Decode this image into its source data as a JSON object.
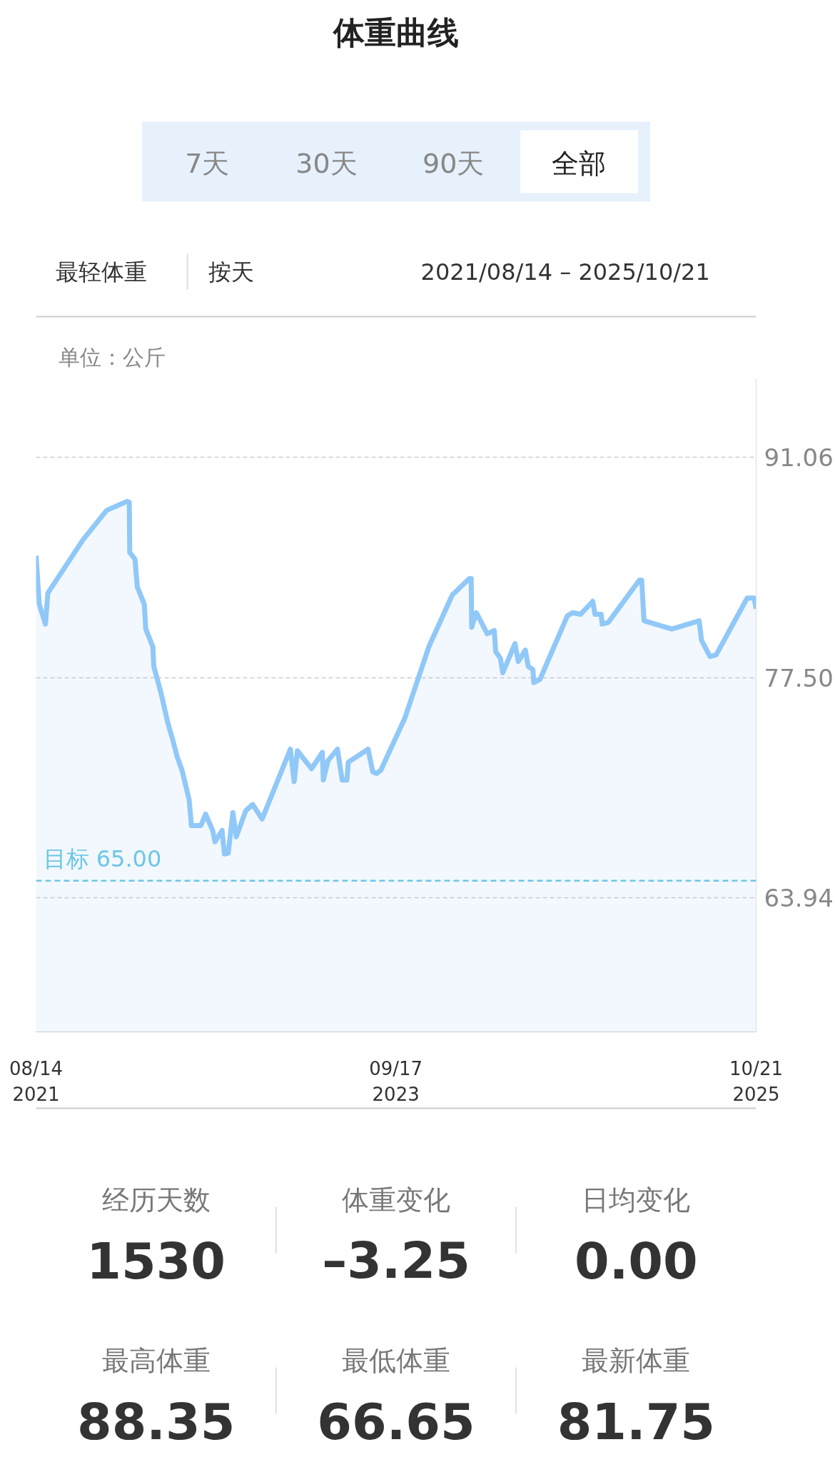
{
  "chart_data": {
    "type": "area",
    "title": "体重曲线",
    "x": [
      "2021-08-14",
      "2021-08-21",
      "2021-09-03",
      "2021-09-08",
      "2021-11-22",
      "2022-01-11",
      "2022-02-23",
      "2022-02-28",
      "2022-03-01",
      "2022-03-12",
      "2022-03-17",
      "2022-04-01",
      "2022-04-04",
      "2022-04-19",
      "2022-04-21",
      "2022-05-06",
      "2022-05-21",
      "2022-05-31",
      "2022-06-10",
      "2022-06-20",
      "2022-07-05",
      "2022-07-10",
      "2022-07-30",
      "2022-08-09",
      "2022-08-24",
      "2022-08-29",
      "2022-09-13",
      "2022-09-18",
      "2022-09-26",
      "2022-10-06",
      "2022-10-13",
      "2022-11-02",
      "2022-11-17",
      "2022-12-07",
      "2023-02-05",
      "2023-02-13",
      "2023-02-20",
      "2023-03-22",
      "2023-04-14",
      "2023-04-16",
      "2023-04-26",
      "2023-05-16",
      "2023-05-26",
      "2023-06-05",
      "2023-06-08",
      "2023-07-20",
      "2023-07-30",
      "2023-08-07",
      "2023-08-16",
      "2023-10-06",
      "2023-11-26",
      "2024-01-15",
      "2024-02-20",
      "2024-02-24",
      "2024-02-25",
      "2024-03-06",
      "2024-03-29",
      "2024-04-13",
      "2024-04-16",
      "2024-04-26",
      "2024-05-01",
      "2024-05-27",
      "2024-06-03",
      "2024-06-18",
      "2024-06-24",
      "2024-07-04",
      "2024-07-06",
      "2024-07-19",
      "2024-09-15",
      "2024-09-26",
      "2024-10-13",
      "2024-11-08",
      "2024-11-13",
      "2024-11-26",
      "2024-11-28",
      "2024-12-11",
      "2025-02-15",
      "2025-02-20",
      "2025-02-25",
      "2025-04-25",
      "2025-06-22",
      "2025-06-27",
      "2025-07-15",
      "2025-07-28",
      "2025-10-02",
      "2025-10-17",
      "2025-10-21"
    ],
    "series": [
      {
        "color": "#90c8f8",
        "values": [
          85.0,
          82.0,
          80.8,
          82.7,
          86.0,
          87.8,
          88.35,
          88.3,
          85.2,
          84.8,
          83.1,
          82.0,
          80.5,
          79.4,
          78.2,
          76.6,
          74.7,
          73.7,
          72.6,
          71.8,
          70.0,
          68.4,
          68.4,
          69.1,
          68.1,
          67.4,
          68.1,
          66.65,
          66.7,
          69.2,
          67.7,
          69.3,
          69.7,
          68.8,
          73.1,
          71.1,
          73.0,
          71.9,
          72.9,
          71.2,
          72.4,
          73.1,
          71.2,
          71.2,
          72.3,
          73.1,
          71.7,
          71.6,
          71.8,
          75.0,
          79.4,
          82.6,
          83.6,
          83.6,
          80.6,
          81.5,
          80.2,
          80.4,
          79.1,
          78.7,
          77.8,
          79.6,
          78.5,
          79.2,
          78.2,
          78.0,
          77.2,
          77.4,
          81.3,
          81.5,
          81.4,
          82.2,
          81.4,
          81.4,
          80.8,
          80.9,
          83.5,
          83.5,
          81.0,
          80.5,
          81.0,
          79.8,
          78.8,
          78.9,
          82.4,
          82.4,
          81.75
        ]
      }
    ],
    "xlim": [
      "2021-08-14",
      "2025-10-21"
    ],
    "xticks": [
      {
        "value": "2021-08-14",
        "label": "08/14\n2021"
      },
      {
        "value": "2023-09-17",
        "label": "09/17\n2023"
      },
      {
        "value": "2025-10-21",
        "label": "10/21\n2025"
      }
    ],
    "ylim": [
      55.7,
      95.9
    ],
    "yticks": [
      {
        "value": 91.06,
        "label": "91.06"
      },
      {
        "value": 77.5,
        "label": "77.50"
      },
      {
        "value": 63.94,
        "label": "63.94"
      }
    ],
    "grid": "y",
    "ref_lines": [
      {
        "axis": "y",
        "value": 65.0,
        "label": "目标 65.00",
        "color": "#6ec6e6",
        "line_style": "dashed"
      }
    ],
    "annotations": [
      "7天",
      "30天",
      "90天",
      "全部",
      "最轻体重",
      "按天",
      "2021/08/14 – 2025/10/21",
      "单位：公斤",
      "经历天数",
      "1530",
      "体重变化",
      "–3.25",
      "日均变化",
      "0.00",
      "最高体重",
      "88.35",
      "最低体重",
      "66.65",
      "最新体重",
      "81.75"
    ]
  }
}
